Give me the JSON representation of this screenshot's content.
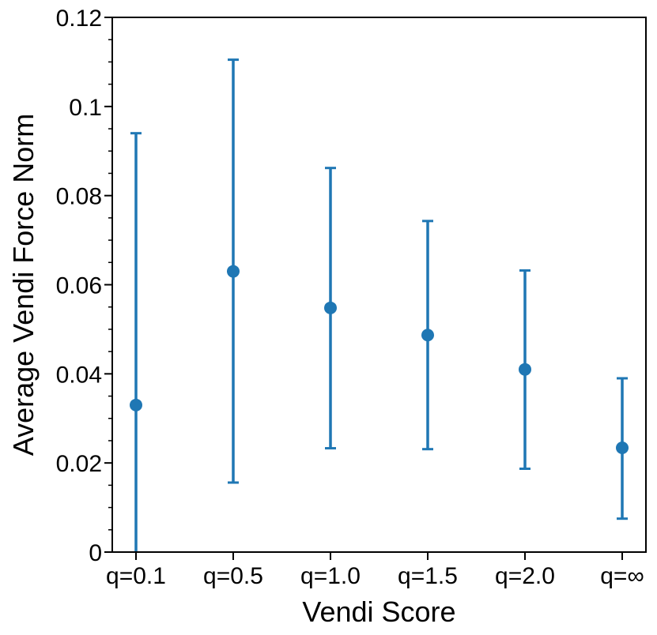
{
  "chart_data": {
    "type": "scatter",
    "title": "",
    "xlabel": "Vendi Score",
    "ylabel": "Average Vendi Force Norm",
    "ylim": [
      0,
      0.12
    ],
    "y_ticks": [
      {
        "value": 0,
        "label": "0"
      },
      {
        "value": 0.02,
        "label": "0.02"
      },
      {
        "value": 0.04,
        "label": "0.04"
      },
      {
        "value": 0.06,
        "label": "0.06"
      },
      {
        "value": 0.08,
        "label": "0.08"
      },
      {
        "value": 0.1,
        "label": "0.1"
      },
      {
        "value": 0.12,
        "label": "0.12"
      }
    ],
    "y_minor_step": 0.005,
    "categories": [
      "q=0.1",
      "q=0.5",
      "q=1.0",
      "q=1.5",
      "q=2.0",
      "q=∞"
    ],
    "series": [
      {
        "values": [
          0.033,
          0.063,
          0.0548,
          0.0487,
          0.041,
          0.0234
        ],
        "error_low": [
          0.0,
          0.0156,
          0.0233,
          0.0231,
          0.0187,
          0.0075
        ],
        "error_high": [
          0.094,
          0.1105,
          0.0862,
          0.0743,
          0.0632,
          0.039
        ]
      }
    ],
    "color": "#1f77b4",
    "grid": false,
    "legend": "none"
  }
}
